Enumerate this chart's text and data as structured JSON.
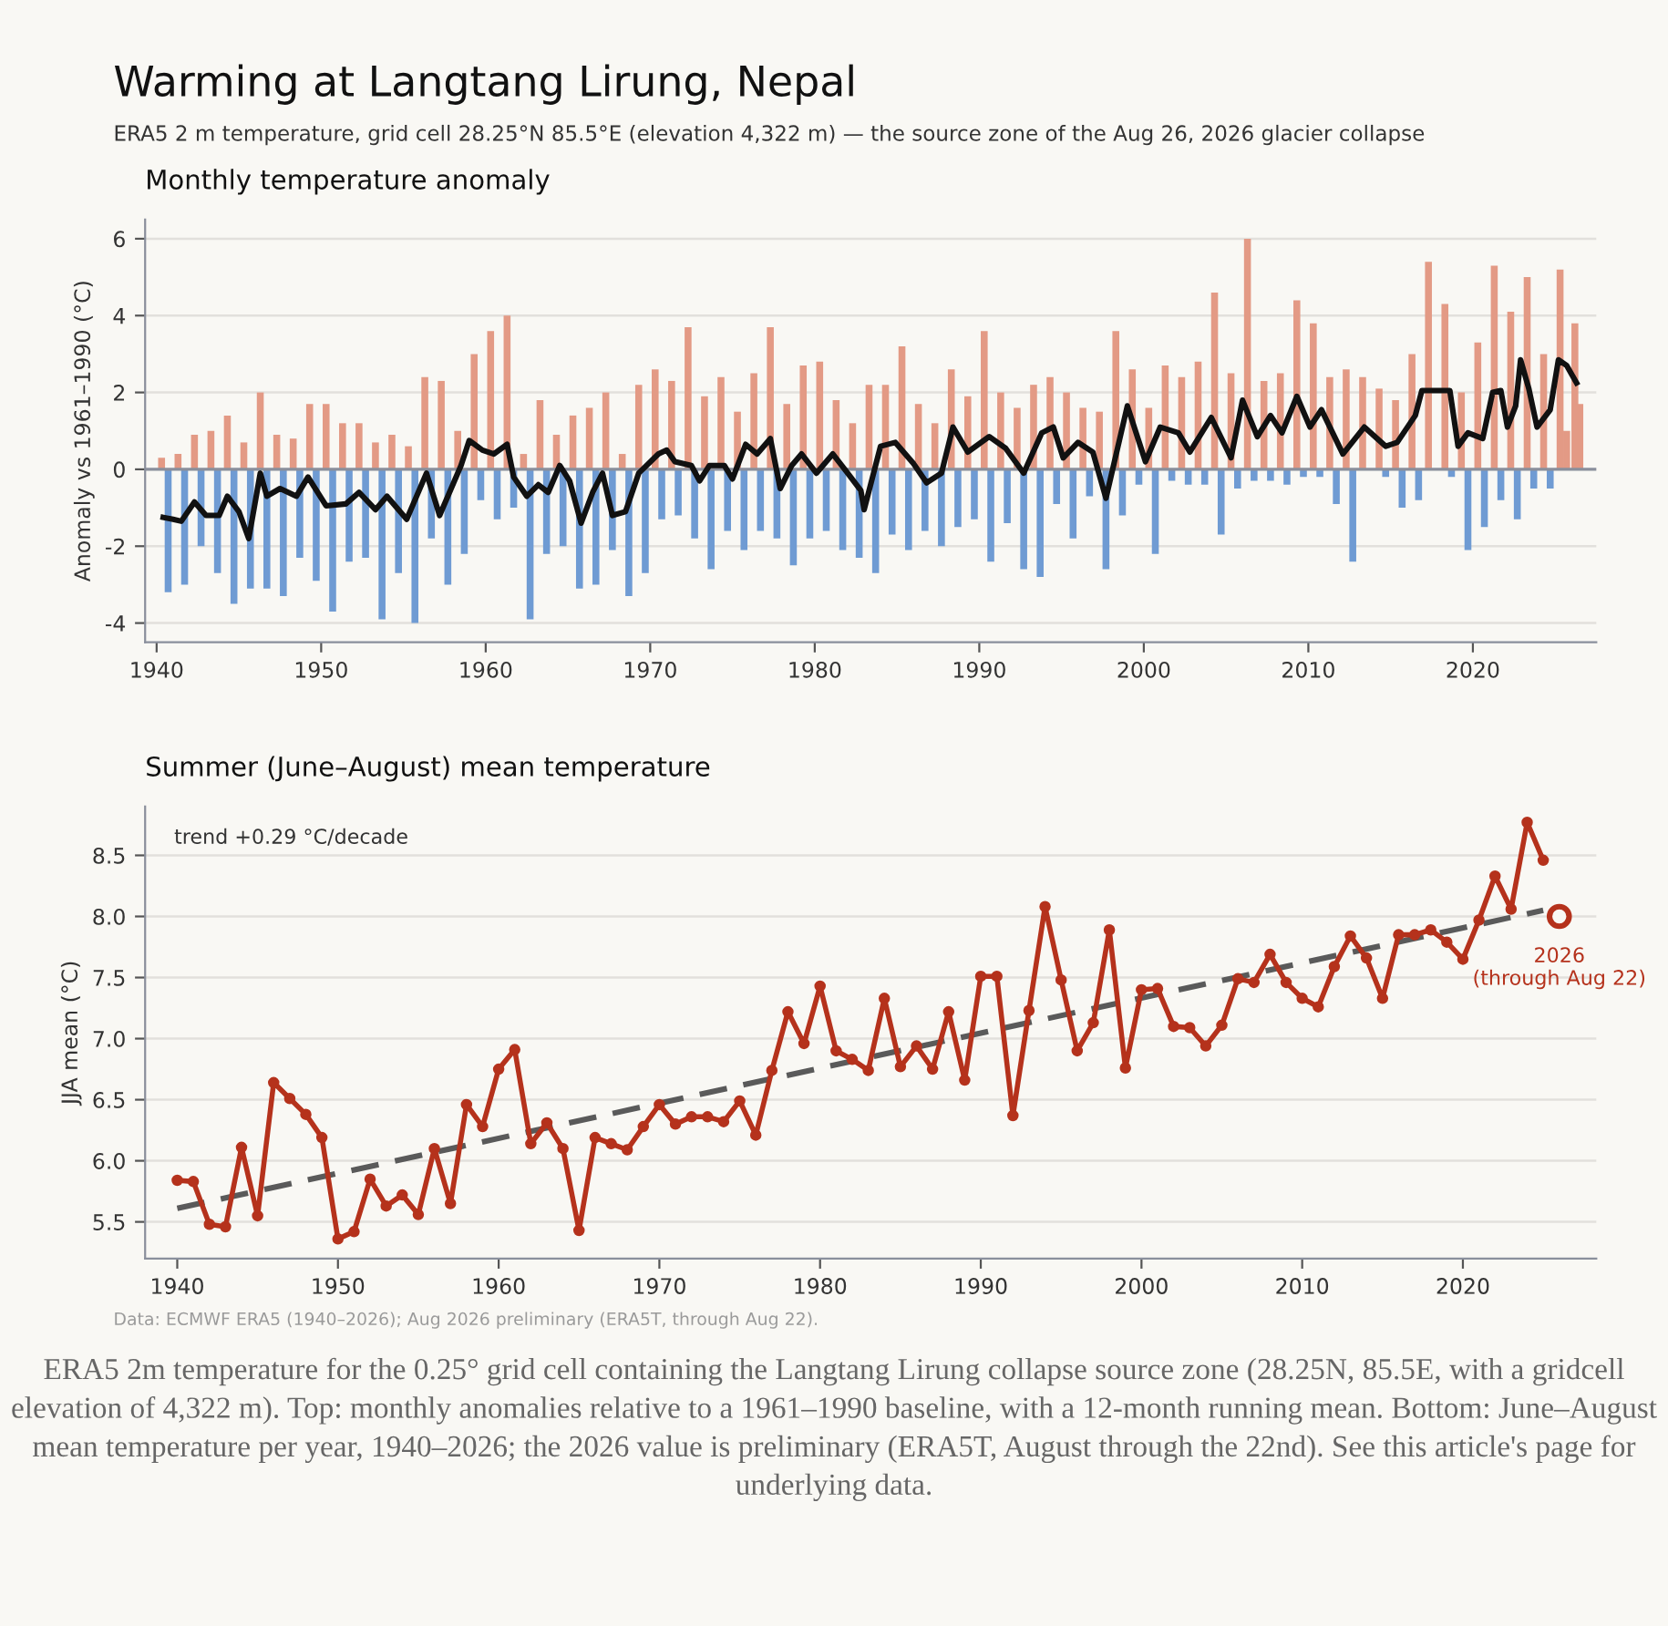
{
  "chart_data": [
    {
      "type": "other",
      "title": "Warming at Langtang Lirung, Nepal",
      "subtitle": "ERA5 2 m temperature, grid cell 28.25°N 85.5°E (elevation 4,322 m) — the source zone of the Aug 26, 2026 glacier collapse"
    },
    {
      "type": "bar",
      "title": "Monthly temperature anomaly",
      "ylabel": "Anomaly vs 1961–1990 (°C)",
      "xlim": [
        1939.3,
        2027.5
      ],
      "ylim": [
        -4.5,
        6.5
      ],
      "xticks": [
        1940,
        1950,
        1960,
        1970,
        1980,
        1990,
        2000,
        2010,
        2020
      ],
      "yticks": [
        -4,
        -2,
        0,
        2,
        4,
        6
      ],
      "grid": "y",
      "ref_lines": [
        {
          "axis": "y",
          "value": 0,
          "color": "#8a8f9c"
        }
      ],
      "series": [
        {
          "type": "bar",
          "color": "#e39a85",
          "x": [
            1940.3,
            1941.3,
            1942.3,
            1943.3,
            1944.3,
            1945.3,
            1946.3,
            1947.3,
            1948.3,
            1949.3,
            1950.3,
            1951.3,
            1952.3,
            1953.3,
            1954.3,
            1955.3,
            1956.3,
            1957.3,
            1958.3,
            1959.3,
            1960.3,
            1961.3,
            1962.3,
            1963.3,
            1964.3,
            1965.3,
            1966.3,
            1967.3,
            1968.3,
            1969.3,
            1970.3,
            1971.3,
            1972.3,
            1973.3,
            1974.3,
            1975.3,
            1976.3,
            1977.3,
            1978.3,
            1979.3,
            1980.3,
            1981.3,
            1982.3,
            1983.3,
            1984.3,
            1985.3,
            1986.3,
            1987.3,
            1988.3,
            1989.3,
            1990.3,
            1991.3,
            1992.3,
            1993.3,
            1994.3,
            1995.3,
            1996.3,
            1997.3,
            1998.3,
            1999.3,
            2000.3,
            2001.3,
            2002.3,
            2003.3,
            2004.3,
            2005.3,
            2006.3,
            2007.3,
            2008.3,
            2009.3,
            2010.3,
            2011.3,
            2012.3,
            2013.3,
            2014.3,
            2015.3,
            2016.3,
            2017.3,
            2018.3,
            2019.3,
            2020.3,
            2021.3,
            2022.3,
            2023.3,
            2024.3,
            2025.3,
            2025.7,
            2026.2,
            2026.5
          ],
          "values": [
            0.3,
            0.4,
            0.9,
            1.0,
            1.4,
            0.7,
            2.0,
            0.9,
            0.8,
            1.7,
            1.7,
            1.2,
            1.2,
            0.7,
            0.9,
            0.6,
            2.4,
            2.3,
            1.0,
            3.0,
            3.6,
            4.0,
            0.4,
            1.8,
            0.9,
            1.4,
            1.6,
            2.0,
            0.4,
            2.2,
            2.6,
            2.3,
            3.7,
            1.9,
            2.4,
            1.5,
            2.5,
            3.7,
            1.7,
            2.7,
            2.8,
            1.8,
            1.2,
            2.2,
            2.2,
            3.2,
            1.7,
            1.2,
            2.6,
            1.9,
            3.6,
            2.0,
            1.6,
            2.2,
            2.4,
            2.0,
            1.6,
            1.5,
            3.6,
            2.6,
            1.6,
            2.7,
            2.4,
            2.8,
            4.6,
            2.5,
            6.0,
            2.3,
            2.5,
            4.4,
            3.8,
            2.4,
            2.6,
            2.4,
            2.1,
            1.8,
            3.0,
            5.4,
            4.3,
            2.0,
            3.3,
            5.3,
            4.1,
            5.0,
            3.0,
            5.2,
            1.0,
            3.8,
            1.7
          ]
        },
        {
          "type": "bar",
          "color": "#6f9bd3",
          "x": [
            1940.7,
            1941.7,
            1942.7,
            1943.7,
            1944.7,
            1945.7,
            1946.7,
            1947.7,
            1948.7,
            1949.7,
            1950.7,
            1951.7,
            1952.7,
            1953.7,
            1954.7,
            1955.7,
            1956.7,
            1957.7,
            1958.7,
            1959.7,
            1960.7,
            1961.7,
            1962.7,
            1963.7,
            1964.7,
            1965.7,
            1966.7,
            1967.7,
            1968.7,
            1969.7,
            1970.7,
            1971.7,
            1972.7,
            1973.7,
            1974.7,
            1975.7,
            1976.7,
            1977.7,
            1978.7,
            1979.7,
            1980.7,
            1981.7,
            1982.7,
            1983.7,
            1984.7,
            1985.7,
            1986.7,
            1987.7,
            1988.7,
            1989.7,
            1990.7,
            1991.7,
            1992.7,
            1993.7,
            1994.7,
            1995.7,
            1996.7,
            1997.7,
            1998.7,
            1999.7,
            2000.7,
            2001.7,
            2002.7,
            2003.7,
            2004.7,
            2005.7,
            2006.7,
            2007.7,
            2008.7,
            2009.7,
            2010.7,
            2011.7,
            2012.7,
            2013.7,
            2014.7,
            2015.7,
            2016.7,
            2017.7,
            2018.7,
            2019.7,
            2020.7,
            2021.7,
            2022.7,
            2023.7,
            2024.7
          ],
          "values": [
            -3.2,
            -3.0,
            -2.0,
            -2.7,
            -3.5,
            -3.1,
            -3.1,
            -3.3,
            -2.3,
            -2.9,
            -3.7,
            -2.4,
            -2.3,
            -3.9,
            -2.7,
            -4.0,
            -1.8,
            -3.0,
            -2.2,
            -0.8,
            -1.3,
            -1.0,
            -3.9,
            -2.2,
            -2.0,
            -3.1,
            -3.0,
            -2.1,
            -3.3,
            -2.7,
            -1.3,
            -1.2,
            -1.8,
            -2.6,
            -1.6,
            -2.1,
            -1.6,
            -1.8,
            -2.5,
            -1.8,
            -1.6,
            -2.1,
            -2.3,
            -2.7,
            -1.7,
            -2.1,
            -1.6,
            -2.0,
            -1.5,
            -1.3,
            -2.4,
            -1.4,
            -2.6,
            -2.8,
            -0.9,
            -1.8,
            -0.7,
            -2.6,
            -1.2,
            -0.4,
            -2.2,
            -0.3,
            -0.4,
            -0.4,
            -1.7,
            -0.5,
            -0.3,
            -0.3,
            -0.4,
            -0.2,
            -0.2,
            -0.9,
            -2.4,
            null,
            -0.2,
            -1.0,
            -0.8,
            null,
            -0.2,
            -2.1,
            -1.5,
            -0.8,
            -1.3,
            -0.5,
            -0.5
          ]
        },
        {
          "type": "line",
          "color": "#111111",
          "x": [
            1940.4,
            1941,
            1941.5,
            1942.3,
            1943,
            1943.8,
            1944.3,
            1945,
            1945.6,
            1946.3,
            1946.7,
            1947.5,
            1948.5,
            1949.2,
            1950.3,
            1951.5,
            1952.3,
            1953.3,
            1954,
            1955.2,
            1956.4,
            1957.2,
            1958.5,
            1959,
            1959.8,
            1960.5,
            1961.3,
            1961.7,
            1962.5,
            1963.2,
            1963.8,
            1964.5,
            1965.1,
            1965.8,
            1966.5,
            1967.1,
            1967.7,
            1968.5,
            1969.3,
            1970.5,
            1971,
            1971.5,
            1972.5,
            1973,
            1973.6,
            1974.5,
            1975,
            1975.8,
            1976.5,
            1977.3,
            1977.9,
            1978.6,
            1979.2,
            1980.1,
            1981.1,
            1982,
            1982.8,
            1983,
            1984,
            1984.9,
            1986,
            1986.8,
            1987.7,
            1988.4,
            1989.3,
            1990.6,
            1991.6,
            1992.7,
            1993.8,
            1994.5,
            1995.1,
            1996,
            1996.9,
            1997.7,
            1999,
            2000.1,
            2001,
            2002.1,
            2002.8,
            2004.1,
            2005.3,
            2006,
            2006.9,
            2007.7,
            2008.4,
            2009.3,
            2010.1,
            2010.8,
            2012.1,
            2013.4,
            2014.7,
            2015.4,
            2016.5,
            2016.9,
            2018.6,
            2019.1,
            2019.7,
            2020.6,
            2021.2,
            2021.7,
            2022.1,
            2022.6,
            2022.9,
            2023.4,
            2023.9,
            2024.7,
            2025.2,
            2025.7,
            2026.3
          ],
          "values": [
            -1.25,
            -1.3,
            -1.35,
            -0.85,
            -1.2,
            -1.2,
            -0.7,
            -1.1,
            -1.8,
            -0.1,
            -0.7,
            -0.5,
            -0.7,
            -0.2,
            -0.95,
            -0.9,
            -0.6,
            -1.05,
            -0.7,
            -1.3,
            -0.1,
            -1.2,
            0.1,
            0.75,
            0.5,
            0.4,
            0.65,
            -0.2,
            -0.7,
            -0.4,
            -0.6,
            0.1,
            -0.3,
            -1.4,
            -0.6,
            -0.1,
            -1.2,
            -1.1,
            -0.1,
            0.4,
            0.5,
            0.2,
            0.1,
            -0.3,
            0.1,
            0.1,
            -0.25,
            0.65,
            0.4,
            0.8,
            -0.5,
            0.1,
            0.4,
            -0.1,
            0.4,
            -0.1,
            -0.55,
            -1.05,
            0.6,
            0.7,
            0.15,
            -0.35,
            -0.1,
            1.1,
            0.45,
            0.85,
            0.55,
            -0.1,
            0.95,
            1.1,
            0.3,
            0.7,
            0.45,
            -0.75,
            1.65,
            0.2,
            1.1,
            0.95,
            0.45,
            1.35,
            0.3,
            1.8,
            0.85,
            1.4,
            0.95,
            1.9,
            1.1,
            1.55,
            0.4,
            1.1,
            0.6,
            0.7,
            1.4,
            2.05,
            2.05,
            0.6,
            0.95,
            0.8,
            2.0,
            2.05,
            1.1,
            1.65,
            2.85,
            2.1,
            1.1,
            1.55,
            2.85,
            2.7,
            2.25
          ]
        }
      ]
    },
    {
      "type": "line",
      "title": "Summer (June–August) mean temperature",
      "ylabel": "JJA mean (°C)",
      "xlim": [
        1938,
        2028.3
      ],
      "ylim": [
        5.2,
        8.9
      ],
      "xticks": [
        1940,
        1950,
        1960,
        1970,
        1980,
        1990,
        2000,
        2010,
        2020
      ],
      "yticks": [
        5.5,
        {
          "value": 6,
          "label": "6.0"
        },
        6.5,
        {
          "value": 7,
          "label": "7.0"
        },
        7.5,
        {
          "value": 8,
          "label": "8.0"
        },
        8.5
      ],
      "grid": "y",
      "annotations": [
        "trend +0.29 °C/decade",
        {
          "text": "2026\n(through Aug 22)",
          "x": 2026,
          "y": 8.0
        }
      ],
      "series": [
        {
          "type": "line",
          "color": "#5a5a5a",
          "line_style": "dashed",
          "x": [
            1940,
            2025
          ],
          "values": [
            5.61,
            8.05
          ]
        },
        {
          "type": "line",
          "color": "#b5321c",
          "marker": "circle",
          "x": [
            1940,
            1941,
            1942,
            1943,
            1944,
            1945,
            1946,
            1947,
            1948,
            1949,
            1950,
            1951,
            1952,
            1953,
            1954,
            1955,
            1956,
            1957,
            1958,
            1959,
            1960,
            1961,
            1962,
            1963,
            1964,
            1965,
            1966,
            1967,
            1968,
            1969,
            1970,
            1971,
            1972,
            1973,
            1974,
            1975,
            1976,
            1977,
            1978,
            1979,
            1980,
            1981,
            1982,
            1983,
            1984,
            1985,
            1986,
            1987,
            1988,
            1989,
            1990,
            1991,
            1992,
            1993,
            1994,
            1995,
            1996,
            1997,
            1998,
            1999,
            2000,
            2001,
            2002,
            2003,
            2004,
            2005,
            2006,
            2007,
            2008,
            2009,
            2010,
            2011,
            2012,
            2013,
            2014,
            2015,
            2016,
            2017,
            2018,
            2019,
            2020,
            2021,
            2022,
            2023,
            2024,
            2025
          ],
          "values": [
            5.84,
            5.83,
            5.48,
            5.46,
            6.11,
            5.55,
            6.64,
            6.51,
            6.38,
            6.19,
            5.36,
            5.42,
            5.85,
            5.63,
            5.72,
            5.56,
            6.1,
            5.65,
            6.46,
            6.28,
            6.75,
            6.91,
            6.14,
            6.31,
            6.1,
            5.43,
            6.19,
            6.14,
            6.09,
            6.28,
            6.46,
            6.3,
            6.36,
            6.36,
            6.32,
            6.49,
            6.21,
            6.74,
            7.22,
            6.96,
            7.43,
            6.9,
            6.83,
            6.74,
            7.33,
            6.77,
            6.94,
            6.75,
            7.22,
            6.66,
            7.51,
            7.51,
            6.37,
            7.23,
            8.08,
            7.48,
            6.9,
            7.13,
            7.89,
            6.76,
            7.4,
            7.41,
            7.1,
            7.09,
            6.94,
            7.11,
            7.49,
            7.46,
            7.69,
            7.46,
            7.33,
            7.26,
            7.59,
            7.84,
            7.66,
            7.33,
            7.85,
            7.85,
            7.89,
            7.79,
            7.65,
            7.97,
            8.33,
            8.06,
            8.77,
            8.46
          ]
        },
        {
          "type": "scatter",
          "color": "#b5321c",
          "marker": "circle",
          "x": [
            2026
          ],
          "values": [
            8.0
          ]
        }
      ]
    },
    {
      "type": "other",
      "annotations": [
        "Data: ECMWF ERA5 (1940–2026); Aug 2026 preliminary (ERA5T, through Aug 22).",
        "ERA5 2m temperature for the 0.25° grid cell containing the Langtang Lirung collapse source zone (28.25N, 85.5E, with a gridcell elevation of 4,322 m). Top: monthly anomalies relative to a 1961–1990 baseline, with a 12-month running mean. Bottom: June–August mean temperature per year, 1940–2026; the 2026 value is preliminary (ERA5T, August through the 22nd). See this article's page for underlying data."
      ]
    }
  ]
}
